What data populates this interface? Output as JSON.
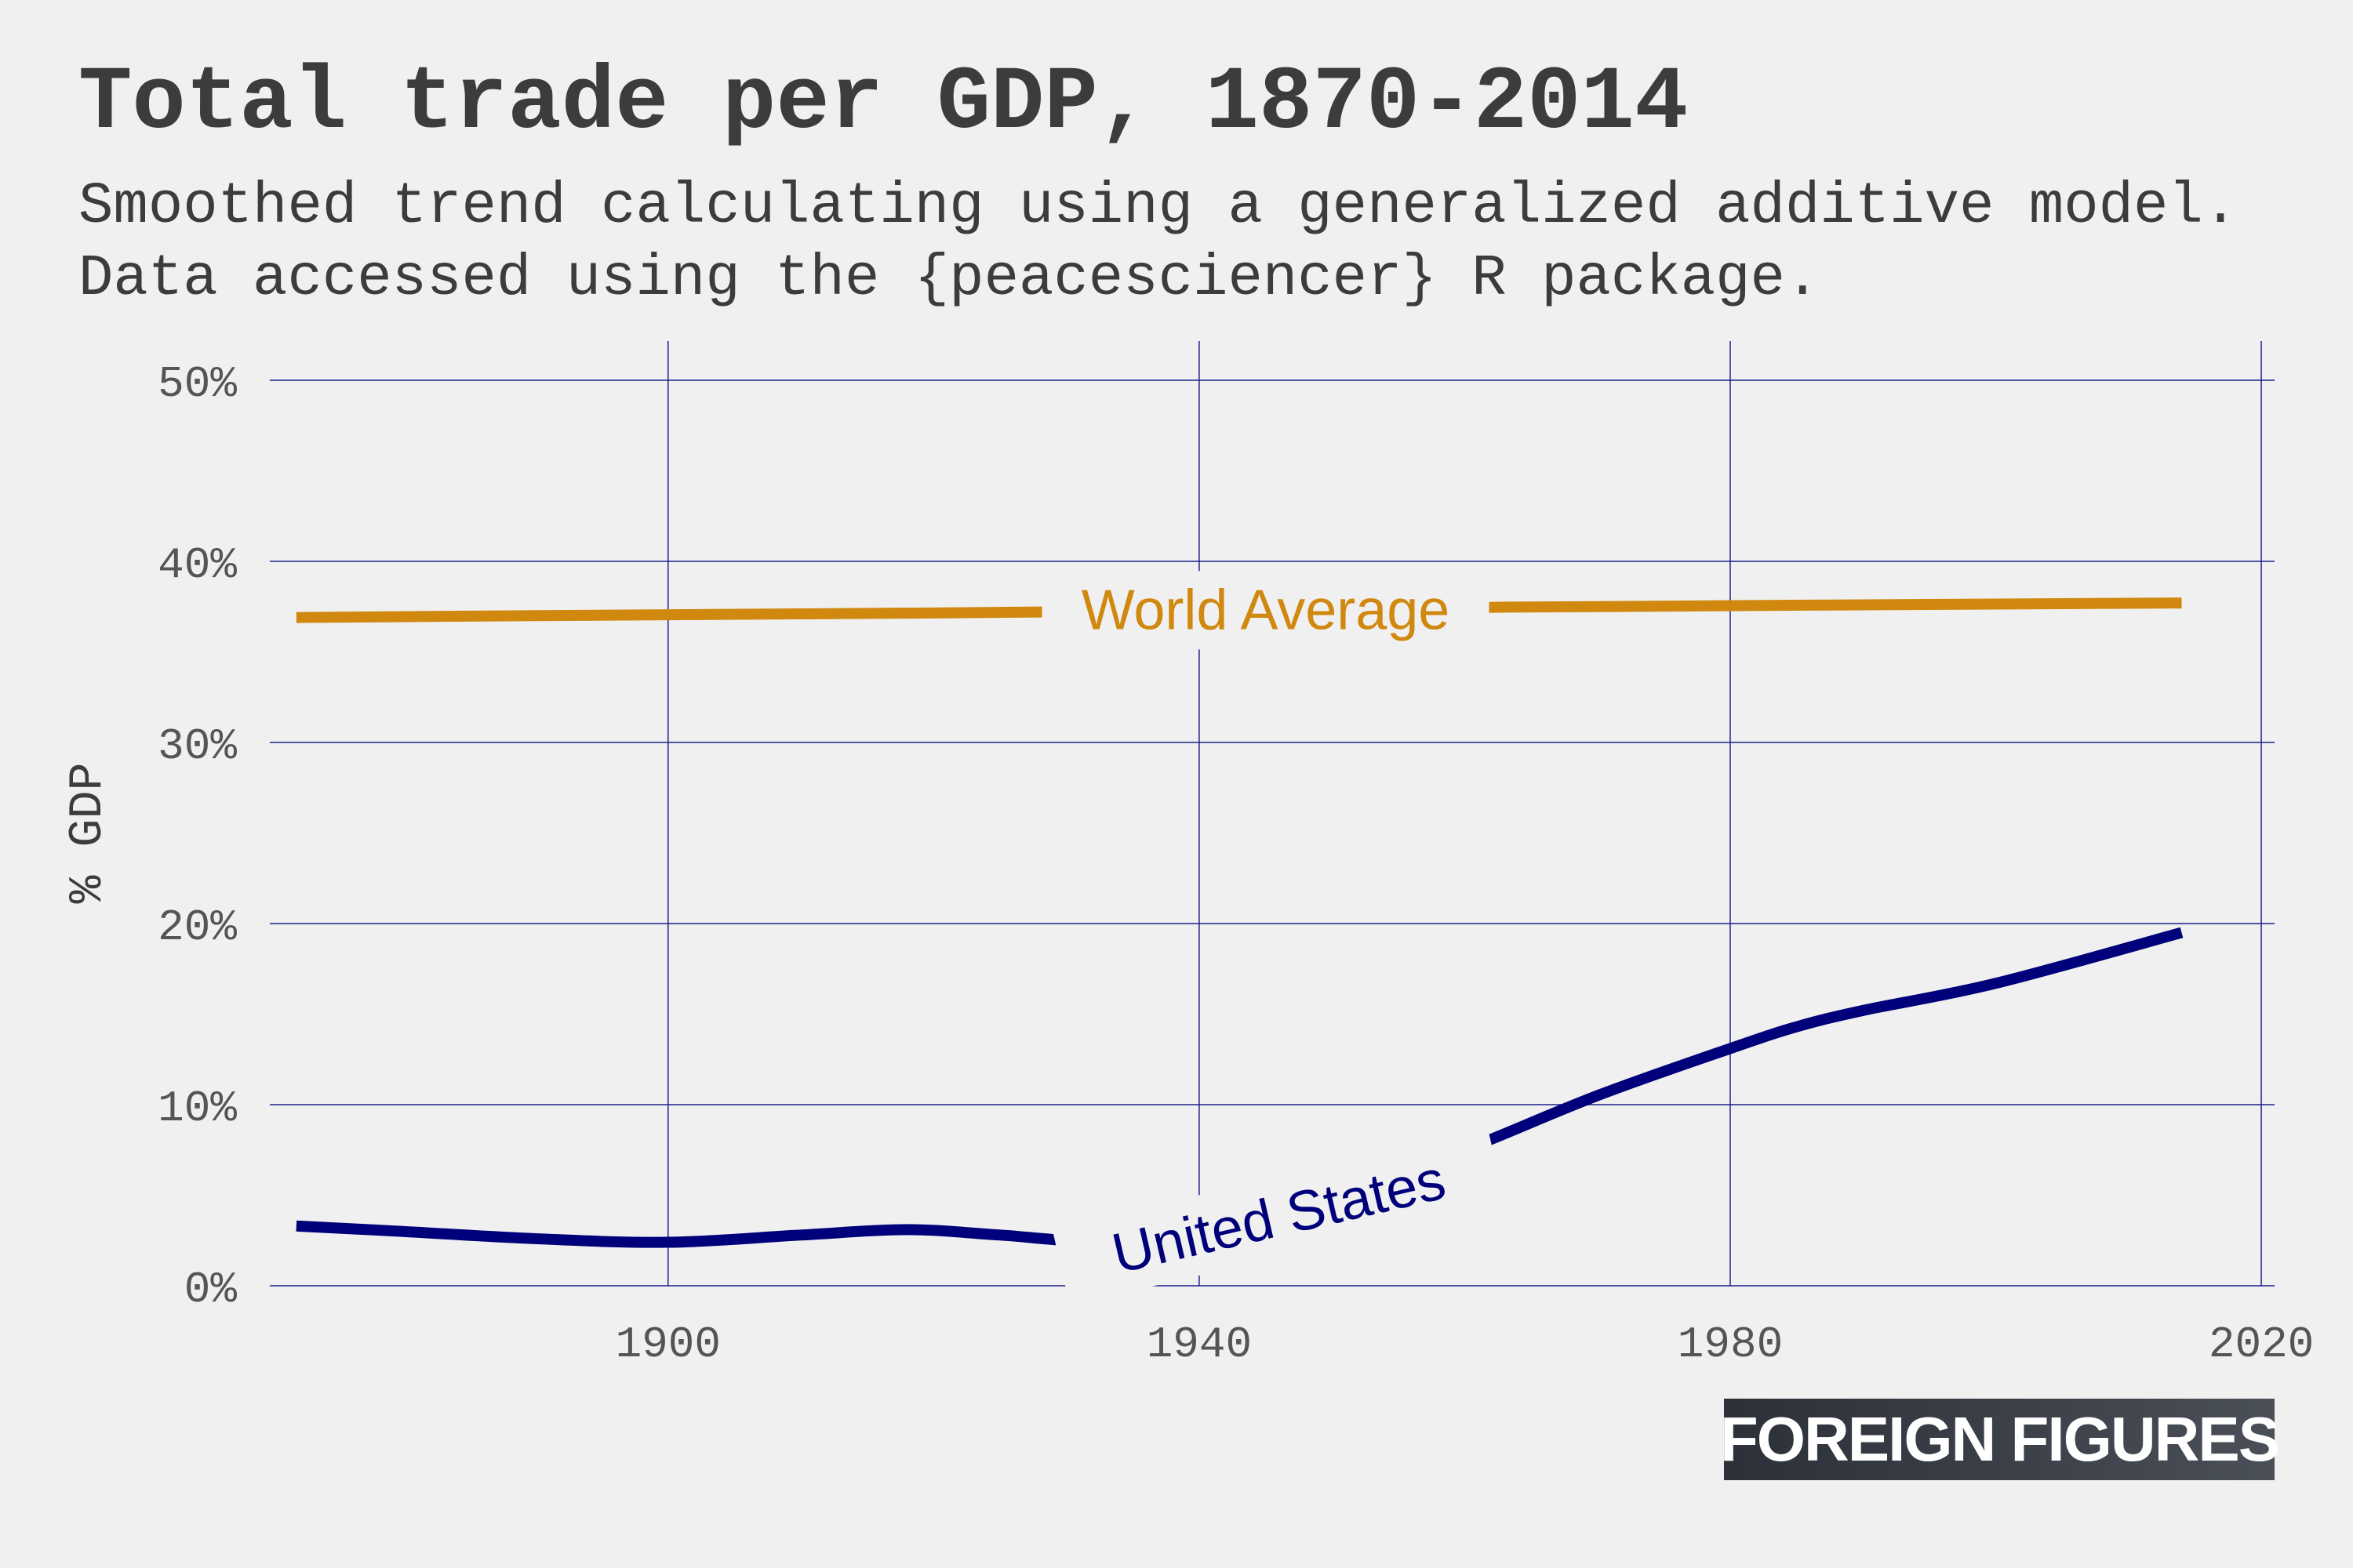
{
  "title": "Total trade per GDP, 1870-2014",
  "subtitle": "Smoothed trend calculating using a generalized additive model. Data accessed using the {peacesciencer} R package.",
  "logo_text": "FOREIGN FIGURES",
  "colors": {
    "background": "#f0f0f0",
    "grid": "#1f1f8c",
    "world": "#d0880f",
    "us": "#00007a",
    "text": "#3c3c3c"
  },
  "chart_data": {
    "type": "line",
    "title": "Total trade per GDP, 1870-2014",
    "xlabel": "",
    "ylabel": "% GDP",
    "xlim": [
      1870,
      2021
    ],
    "ylim": [
      0,
      50
    ],
    "x_ticks": [
      1900,
      1940,
      1980,
      2020
    ],
    "x_tick_labels": [
      "1900",
      "1940",
      "1980",
      "2020"
    ],
    "y_ticks": [
      0,
      10,
      20,
      30,
      40,
      50
    ],
    "y_tick_labels": [
      "0%",
      "10%",
      "20%",
      "30%",
      "40%",
      "50%"
    ],
    "grid": true,
    "legend": "none",
    "series": [
      {
        "name": "World Average",
        "color": "#d0880f",
        "x": [
          1872,
          1890,
          1910,
          1928,
          1950,
          1970,
          1990,
          2014
        ],
        "y": [
          36.9,
          37.0,
          37.1,
          37.2,
          37.4,
          37.5,
          37.6,
          37.7
        ],
        "label_position": [
          1945,
          37.3
        ]
      },
      {
        "name": "United States",
        "color": "#00007a",
        "x": [
          1872,
          1880,
          1890,
          1900,
          1910,
          1918,
          1925,
          1932,
          1940,
          1950,
          1960,
          1970,
          1980,
          1985,
          1990,
          2000,
          2014
        ],
        "y": [
          3.3,
          3.0,
          2.6,
          2.4,
          2.8,
          3.1,
          2.8,
          2.5,
          3.2,
          4.8,
          7.5,
          10.5,
          13.1,
          14.3,
          15.2,
          16.7,
          19.5
        ],
        "label_position": [
          1946,
          3.8
        ],
        "label_angle": -13
      }
    ]
  }
}
